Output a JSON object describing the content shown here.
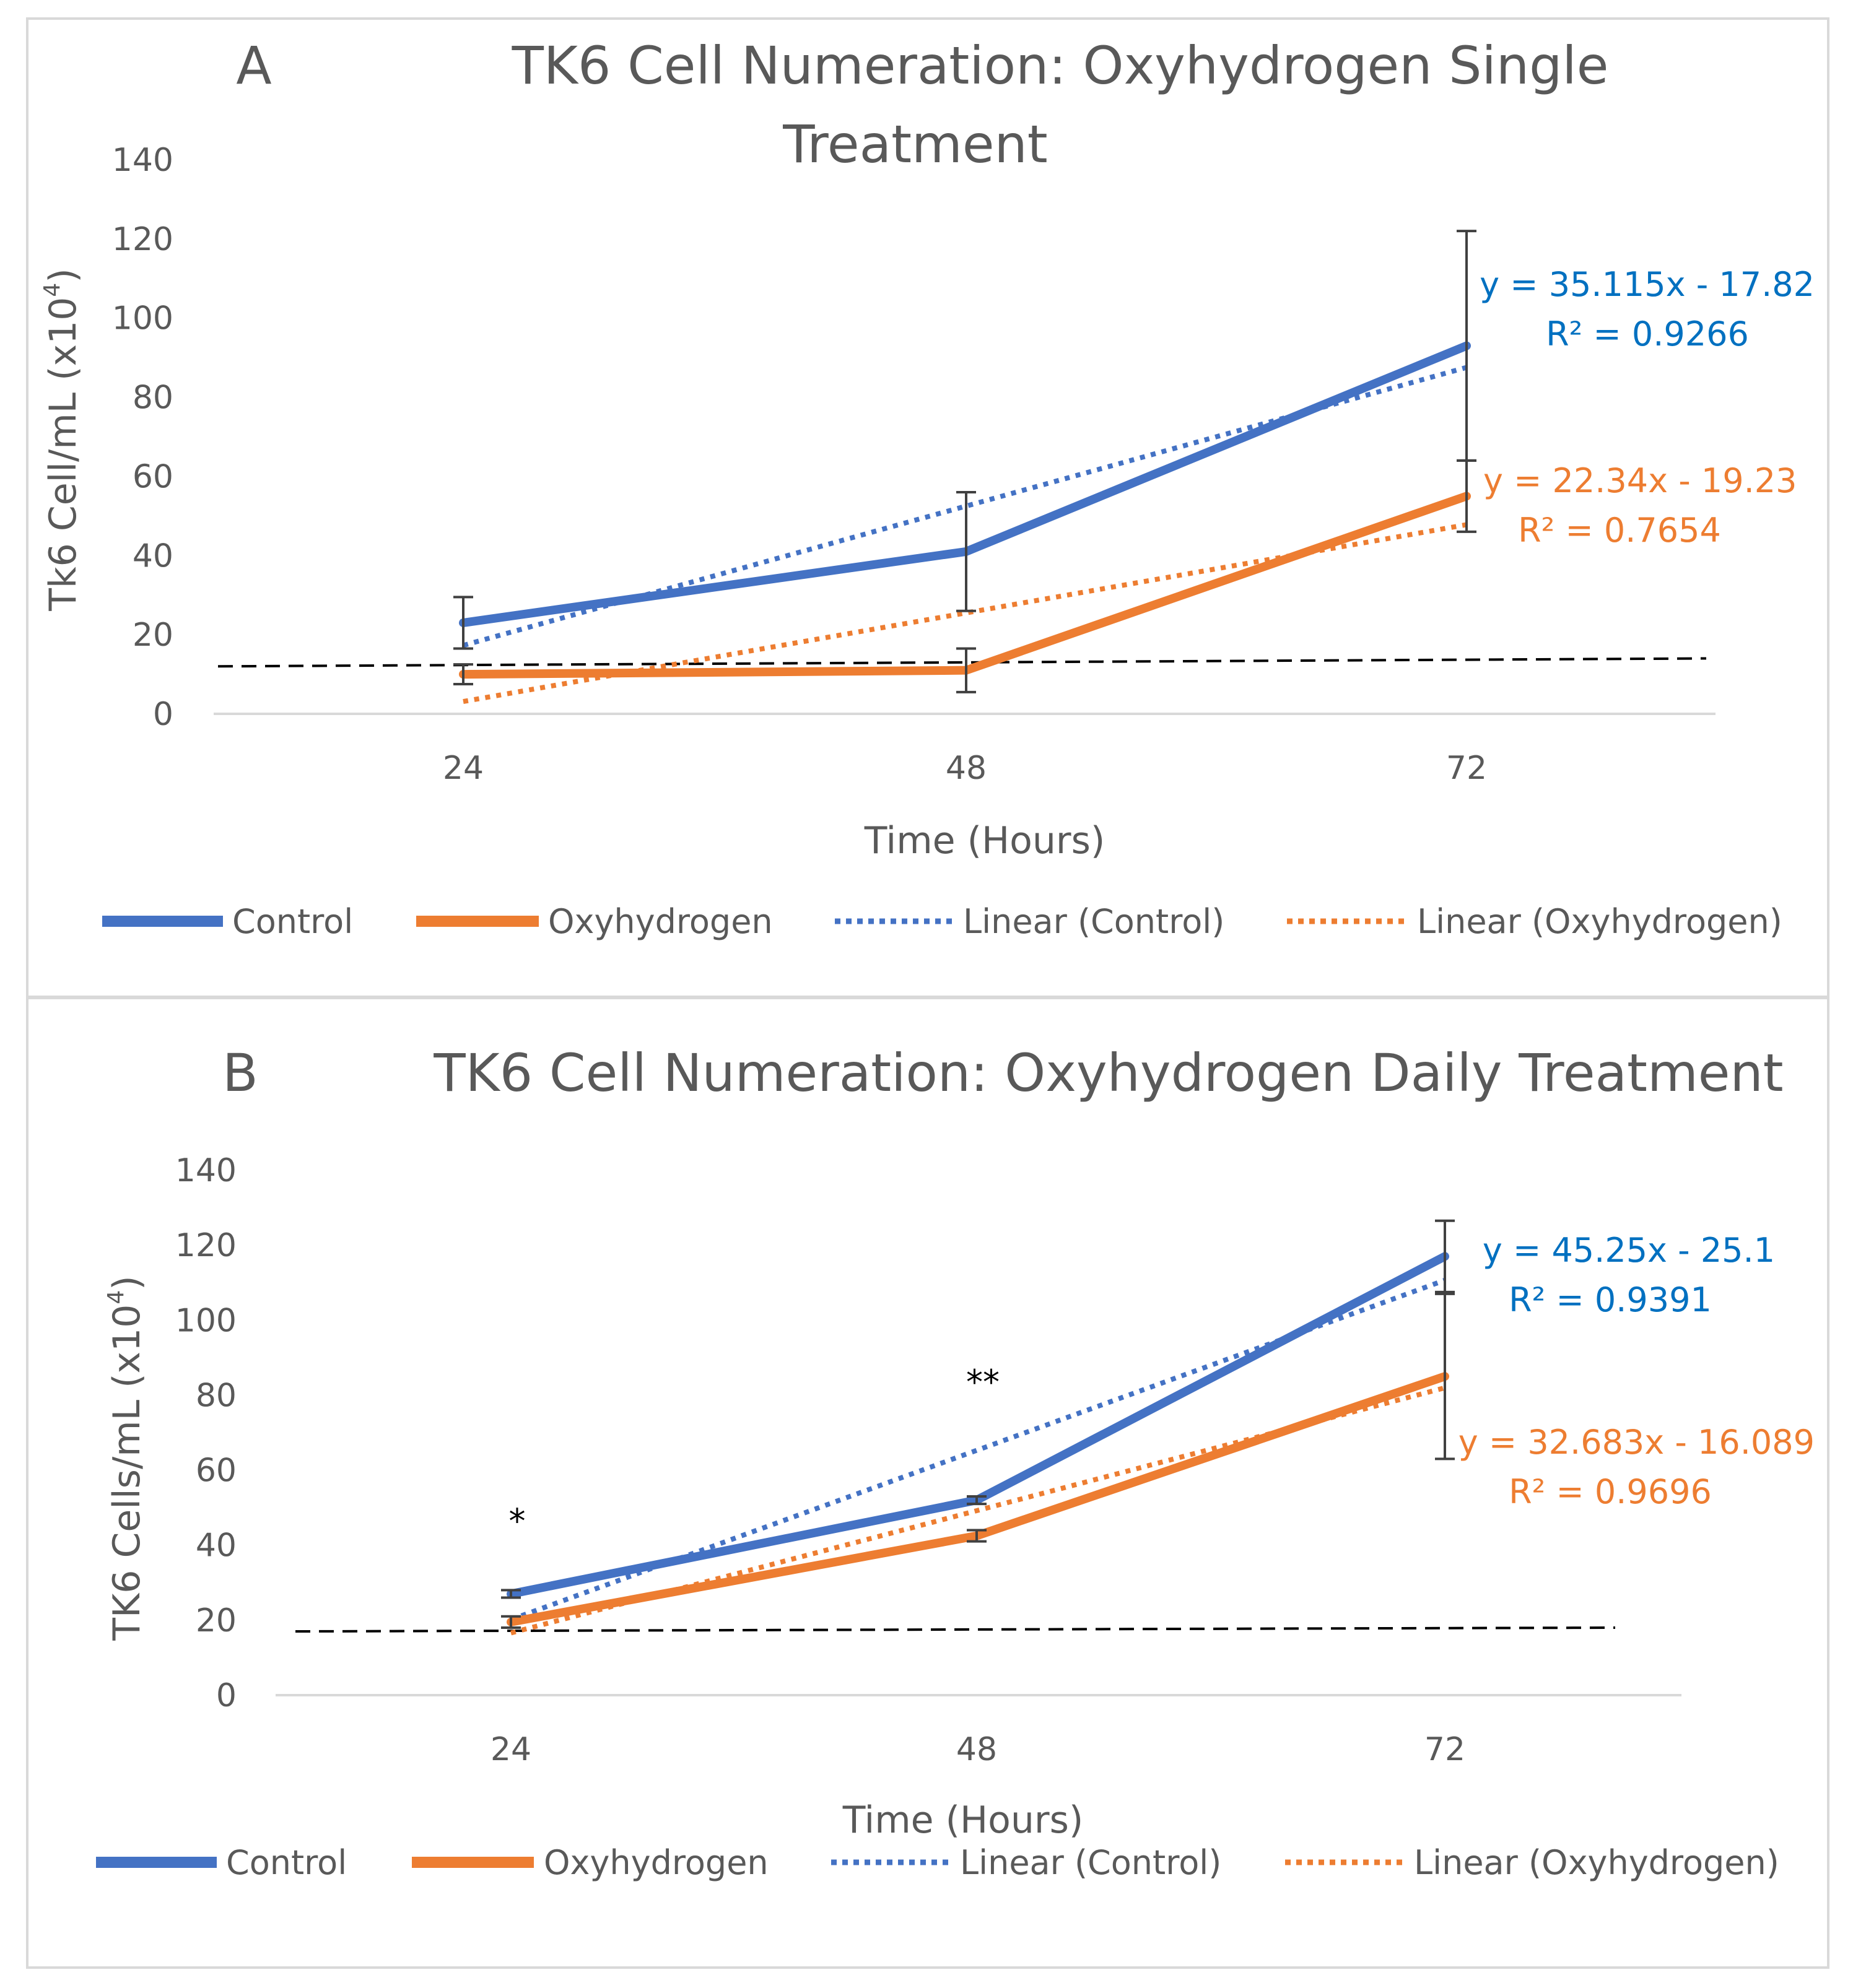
{
  "chart_data": [
    {
      "type": "line",
      "panel_letter": "A",
      "title_line1": "TK6 Cell Numeration: Oxyhydrogen Single",
      "title_line2": "Treatment",
      "xlabel": "Time (Hours)",
      "ylabel": "Tk6 Cell/mL (x10",
      "ylabel_sup": "4",
      "ylabel_close": ")",
      "categories": [
        "24",
        "48",
        "72"
      ],
      "ylim": [
        0,
        140
      ],
      "yticks": [
        "0",
        "20",
        "40",
        "60",
        "80",
        "100",
        "120",
        "140"
      ],
      "series": [
        {
          "name": "Control",
          "values": [
            23,
            41,
            93
          ],
          "error": [
            6.5,
            15,
            29
          ],
          "color": "#4472C4",
          "style": "solid"
        },
        {
          "name": "Oxyhydrogen",
          "values": [
            10,
            11,
            55
          ],
          "error": [
            2.5,
            5.5,
            9
          ],
          "color": "#ED7D31",
          "style": "solid"
        }
      ],
      "trendlines": [
        {
          "name": "Linear (Control)",
          "slope": 35.115,
          "intercept": -17.82,
          "color": "#4472C4",
          "equation": "y = 35.115x - 17.82",
          "r2": "R² = 0.9266"
        },
        {
          "name": "Linear (Oxyhydrogen)",
          "slope": 22.34,
          "intercept": -19.23,
          "color": "#ED7D31",
          "equation": "y = 22.34x - 19.23",
          "r2": "R² = 0.7654"
        }
      ],
      "reference_line": {
        "style": "dashed",
        "color": "#000000",
        "start": 12,
        "end": 14
      },
      "legend": [
        "Control",
        "Oxyhydrogen",
        "Linear (Control)",
        "Linear (Oxyhydrogen)"
      ],
      "legend_position": "bottom",
      "annotations": []
    },
    {
      "type": "line",
      "panel_letter": "B",
      "title_line1": "TK6 Cell Numeration: Oxyhydrogen Daily Treatment",
      "title_line2": "",
      "xlabel": "Time (Hours)",
      "ylabel": "TK6 Cells/mL (x10",
      "ylabel_sup": "4",
      "ylabel_close": ")",
      "categories": [
        "24",
        "48",
        "72"
      ],
      "ylim": [
        0,
        140
      ],
      "yticks": [
        "0",
        "20",
        "40",
        "60",
        "80",
        "100",
        "120",
        "140"
      ],
      "series": [
        {
          "name": "Control",
          "values": [
            27,
            52,
            117
          ],
          "error": [
            1,
            1,
            9.5
          ],
          "color": "#4472C4",
          "style": "solid"
        },
        {
          "name": "Oxyhydrogen",
          "values": [
            19.5,
            42.5,
            85
          ],
          "error": [
            1.5,
            1.5,
            22
          ],
          "color": "#ED7D31",
          "style": "solid"
        }
      ],
      "trendlines": [
        {
          "name": "Linear (Control)",
          "slope": 45.25,
          "intercept": -25.1,
          "color": "#4472C4",
          "equation": "y = 45.25x - 25.1",
          "r2": "R² = 0.9391"
        },
        {
          "name": "Linear (Oxyhydrogen)",
          "slope": 32.683,
          "intercept": -16.089,
          "color": "#ED7D31",
          "equation": "y = 32.683x - 16.089",
          "r2": "R² = 0.9696"
        }
      ],
      "reference_line": {
        "style": "dashed",
        "color": "#000000",
        "start": 17,
        "end": 18
      },
      "legend": [
        "Control",
        "Oxyhydrogen",
        "Linear (Control)",
        "Linear (Oxyhydrogen)"
      ],
      "legend_position": "bottom",
      "annotations": [
        {
          "text": "*",
          "category_index": 0,
          "value": 48
        },
        {
          "text": "**",
          "category_index": 1,
          "value": 85
        }
      ]
    }
  ]
}
